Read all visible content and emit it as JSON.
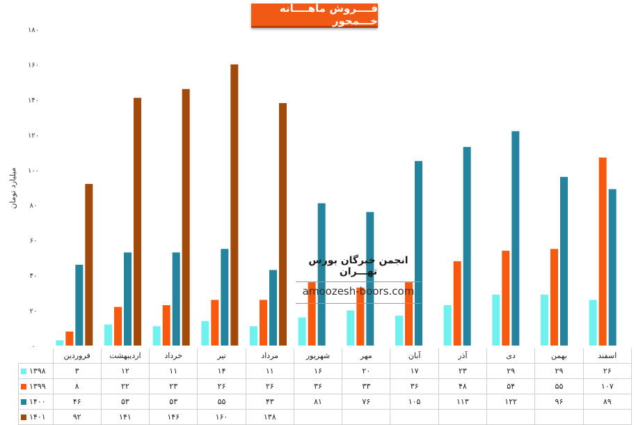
{
  "title": "فــــروش ماهــــانه خـــمحور",
  "watermark": {
    "name": "انجمن خبرگان بورس تهـــران",
    "url": "amoozesh-boors.com"
  },
  "chart_data": {
    "type": "bar",
    "title": "فــــروش ماهــــانه خـــمحور",
    "ylabel": "میلیارد تومان",
    "xlabel": "",
    "ylim": [
      0,
      180
    ],
    "yticks": [
      "۰",
      "۲۰",
      "۴۰",
      "۶۰",
      "۸۰",
      "۱۰۰",
      "۱۲۰",
      "۱۴۰",
      "۱۶۰",
      "۱۸۰"
    ],
    "categories": [
      "فروردین",
      "اردیبهشت",
      "خرداد",
      "تیر",
      "مرداد",
      "شهریور",
      "مهر",
      "آبان",
      "آذر",
      "دی",
      "بهمن",
      "اسفند"
    ],
    "series": [
      {
        "name": "۱۳۹۸",
        "color": "#6ff2ef",
        "values": [
          3,
          12,
          11,
          14,
          11,
          16,
          20,
          17,
          23,
          29,
          29,
          26
        ],
        "labels": [
          "۳",
          "۱۲",
          "۱۱",
          "۱۴",
          "۱۱",
          "۱۶",
          "۲۰",
          "۱۷",
          "۲۳",
          "۲۹",
          "۲۹",
          "۲۶"
        ]
      },
      {
        "name": "۱۳۹۹",
        "color": "#f75a0f",
        "values": [
          8,
          22,
          23,
          26,
          26,
          36,
          33,
          36,
          48,
          54,
          55,
          107
        ],
        "labels": [
          "۸",
          "۲۲",
          "۲۳",
          "۲۶",
          "۲۶",
          "۳۶",
          "۳۳",
          "۳۶",
          "۴۸",
          "۵۴",
          "۵۵",
          "۱۰۷"
        ]
      },
      {
        "name": "۱۴۰۰",
        "color": "#24839d",
        "values": [
          46,
          53,
          53,
          55,
          43,
          81,
          76,
          105,
          113,
          122,
          96,
          89
        ],
        "labels": [
          "۴۶",
          "۵۳",
          "۵۳",
          "۵۵",
          "۴۳",
          "۸۱",
          "۷۶",
          "۱۰۵",
          "۱۱۳",
          "۱۲۲",
          "۹۶",
          "۸۹"
        ]
      },
      {
        "name": "۱۴۰۱",
        "color": "#a14a0c",
        "values": [
          92,
          141,
          146,
          160,
          138,
          null,
          null,
          null,
          null,
          null,
          null,
          null
        ],
        "labels": [
          "۹۲",
          "۱۴۱",
          "۱۴۶",
          "۱۶۰",
          "۱۳۸",
          "",
          "",
          "",
          "",
          "",
          "",
          ""
        ]
      }
    ],
    "legend": "table-below",
    "grid": false
  }
}
